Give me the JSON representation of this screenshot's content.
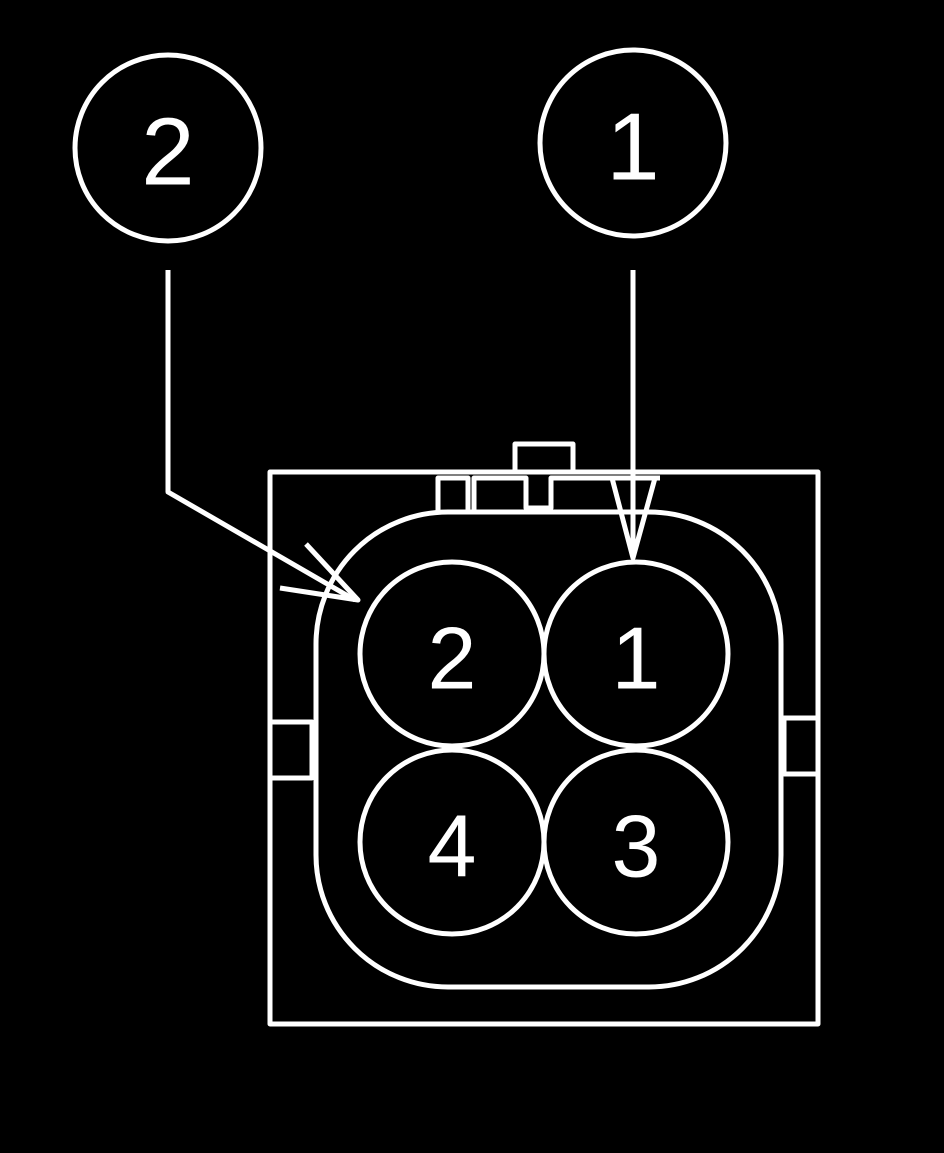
{
  "callouts": [
    {
      "label": "2"
    },
    {
      "label": "1"
    }
  ],
  "pins": [
    {
      "label": "2"
    },
    {
      "label": "1"
    },
    {
      "label": "4"
    },
    {
      "label": "3"
    }
  ],
  "colors": {
    "background": "#000000",
    "line": "#ffffff"
  }
}
